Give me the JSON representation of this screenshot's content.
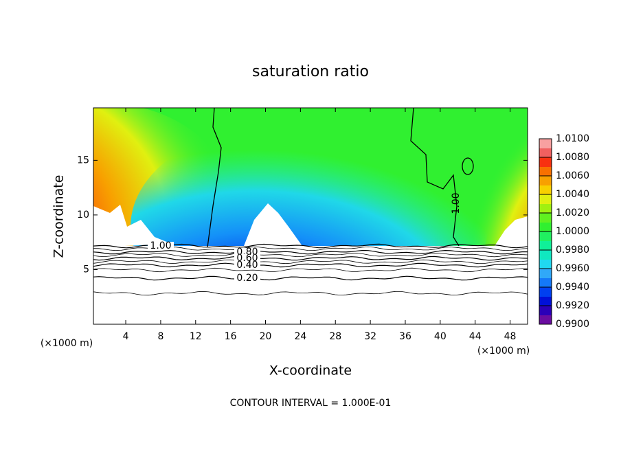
{
  "chart_data": {
    "type": "contour",
    "title": "saturation ratio",
    "x_label": "X-coordinate",
    "y_label": "Z-coordinate",
    "x_unit_left": "(×1000 m)",
    "x_unit_right": "(×1000 m)",
    "footer": "CONTOUR INTERVAL = 1.000E-01",
    "xlim": [
      0.3,
      50
    ],
    "xticks": [
      4,
      8,
      12,
      16,
      20,
      24,
      28,
      32,
      36,
      40,
      44,
      48
    ],
    "ylim": [
      0,
      19.8
    ],
    "yticks": [
      5,
      10,
      15
    ],
    "contour_levels": [
      {
        "value": 1.0,
        "label": "1.00"
      },
      {
        "value": 0.8,
        "label": "0.80"
      },
      {
        "value": 0.6,
        "label": "0.60"
      },
      {
        "value": 0.4,
        "label": "0.40"
      },
      {
        "value": 0.2,
        "label": "0.20"
      }
    ],
    "colorbar": {
      "lim": [
        0.99,
        1.01
      ],
      "ticks": [
        {
          "value": 0.99,
          "label": "0.9900"
        },
        {
          "value": 0.992,
          "label": "0.9920"
        },
        {
          "value": 0.994,
          "label": "0.9940"
        },
        {
          "value": 0.996,
          "label": "0.9960"
        },
        {
          "value": 0.998,
          "label": "0.9980"
        },
        {
          "value": 1.0,
          "label": "1.0000"
        },
        {
          "value": 1.002,
          "label": "1.0020"
        },
        {
          "value": 1.004,
          "label": "1.0040"
        },
        {
          "value": 1.006,
          "label": "1.0060"
        },
        {
          "value": 1.008,
          "label": "1.0080"
        },
        {
          "value": 1.01,
          "label": "1.0100"
        }
      ],
      "colors": [
        "#6a0da0",
        "#2a00b8",
        "#0010d8",
        "#0040f0",
        "#1478f8",
        "#30a8f8",
        "#20d8f0",
        "#10e8c0",
        "#10f098",
        "#20f060",
        "#30f030",
        "#60f020",
        "#a0f010",
        "#e0f010",
        "#f8d000",
        "#f8a000",
        "#f87000",
        "#f83010",
        "#f06060",
        "#f8a0a0"
      ]
    }
  }
}
